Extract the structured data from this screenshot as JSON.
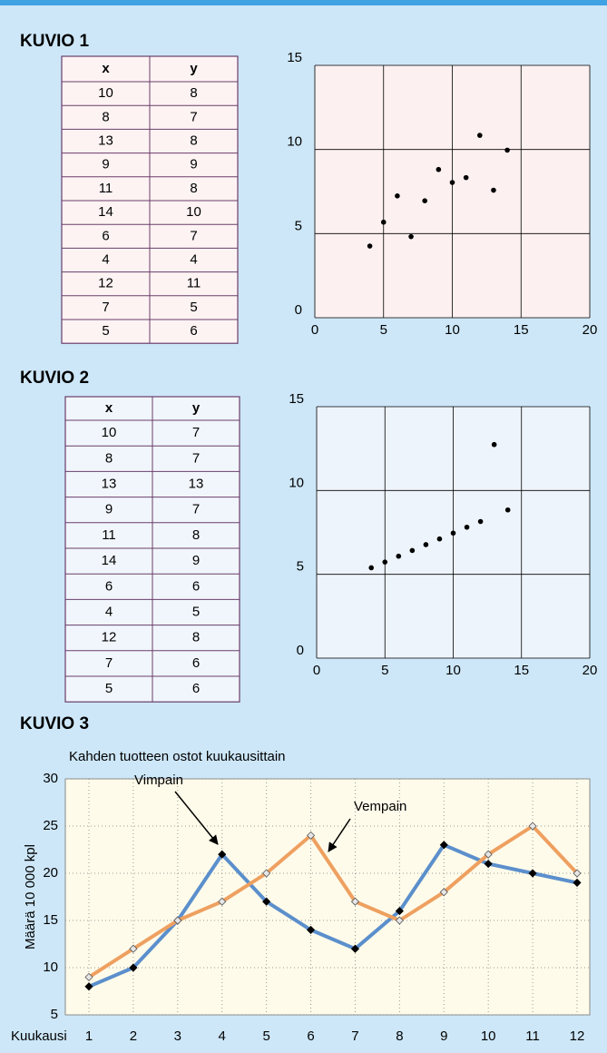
{
  "headings": [
    "KUVIO 1",
    "KUVIO 2",
    "KUVIO 3"
  ],
  "tables": [
    {
      "columns": [
        "x",
        "y"
      ],
      "rows": [
        [
          10,
          8
        ],
        [
          8,
          7
        ],
        [
          13,
          8
        ],
        [
          9,
          9
        ],
        [
          11,
          8
        ],
        [
          14,
          10
        ],
        [
          6,
          7
        ],
        [
          4,
          4
        ],
        [
          12,
          11
        ],
        [
          7,
          5
        ],
        [
          5,
          6
        ]
      ]
    },
    {
      "columns": [
        "x",
        "y"
      ],
      "rows": [
        [
          10,
          7
        ],
        [
          8,
          7
        ],
        [
          13,
          13
        ],
        [
          9,
          7
        ],
        [
          11,
          8
        ],
        [
          14,
          9
        ],
        [
          6,
          6
        ],
        [
          4,
          5
        ],
        [
          12,
          8
        ],
        [
          7,
          6
        ],
        [
          5,
          6
        ]
      ]
    }
  ],
  "chart_data": [
    {
      "type": "scatter",
      "x": [
        10,
        8,
        13,
        9,
        11,
        14,
        6,
        4,
        12,
        7,
        5
      ],
      "values": [
        8.04,
        6.95,
        7.58,
        8.81,
        8.33,
        9.96,
        7.24,
        4.26,
        10.84,
        4.82,
        5.68
      ],
      "color": "#000000",
      "xlim": [
        0,
        20
      ],
      "xticks": [
        0,
        5,
        10,
        15,
        20
      ],
      "ylim": [
        0,
        15
      ],
      "yticks": [
        0,
        5,
        10,
        15
      ],
      "grid": true
    },
    {
      "type": "scatter",
      "x": [
        10,
        8,
        13,
        9,
        11,
        14,
        6,
        4,
        12,
        7,
        5
      ],
      "values": [
        7.46,
        6.77,
        12.74,
        7.11,
        7.81,
        8.84,
        6.08,
        5.39,
        8.15,
        6.42,
        5.73
      ],
      "color": "#000000",
      "xlim": [
        0,
        20
      ],
      "xticks": [
        0,
        5,
        10,
        15,
        20
      ],
      "ylim": [
        0,
        15
      ],
      "yticks": [
        0,
        5,
        10,
        15
      ],
      "grid": true
    },
    {
      "type": "line",
      "title": "Kahden tuotteen ostot kuukausittain",
      "x_label": "Kuukausi",
      "y_label": "Määrä 10 000 kpl",
      "categories": [
        "1",
        "2",
        "3",
        "4",
        "5",
        "6",
        "7",
        "8",
        "9",
        "10",
        "11",
        "12"
      ],
      "series": [
        {
          "name": "Vimpain",
          "color": "#5b8fcc",
          "values": [
            8,
            10,
            15,
            22,
            17,
            14,
            12,
            16,
            23,
            21,
            20,
            19
          ]
        },
        {
          "name": "Vempain",
          "color": "#eea060",
          "values": [
            9,
            12,
            15,
            17,
            20,
            24,
            17,
            15,
            18,
            22,
            25,
            20
          ]
        }
      ],
      "ylim": [
        5,
        30
      ],
      "yticks": [
        5,
        10,
        15,
        20,
        25,
        30
      ],
      "grid": true
    }
  ]
}
